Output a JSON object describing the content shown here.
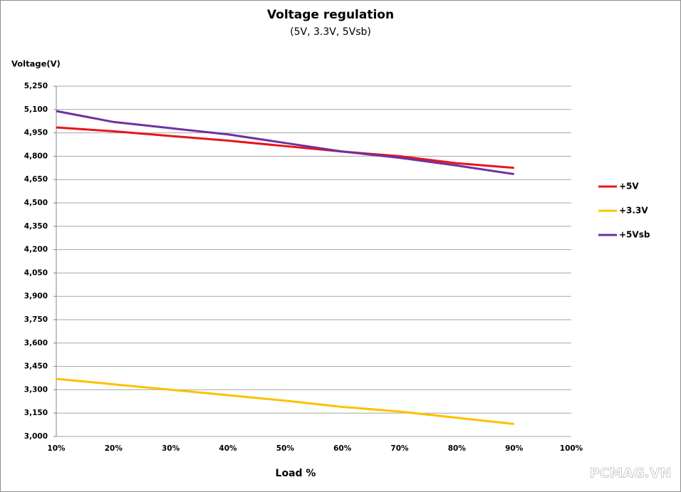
{
  "chart_data": {
    "type": "line",
    "title": "Voltage regulation",
    "subtitle": "(5V, 3.3V, 5Vsb)",
    "y_label": "Voltage(V)",
    "x_label": "Load %",
    "watermark": "PCMAG.VN",
    "categories": [
      "10%",
      "20%",
      "30%",
      "40%",
      "50%",
      "60%",
      "70%",
      "80%",
      "90%",
      "100%"
    ],
    "series": [
      {
        "name": "+5V",
        "color": "#e8141c",
        "values": [
          4985,
          4960,
          4930,
          4900,
          4865,
          4830,
          4800,
          4755,
          4725,
          null
        ]
      },
      {
        "name": "+3.3V",
        "color": "#ffc000",
        "values": [
          3370,
          3335,
          3300,
          3265,
          3230,
          3190,
          3160,
          3120,
          3080,
          null
        ]
      },
      {
        "name": "+5Vsb",
        "color": "#7030a0",
        "values": [
          5090,
          5020,
          4980,
          4940,
          4885,
          4830,
          4790,
          4740,
          4685,
          null
        ]
      }
    ],
    "ylim": [
      3000,
      5250
    ],
    "yticks": [
      {
        "value": 3000,
        "label": "3,000"
      },
      {
        "value": 3150,
        "label": "3,150"
      },
      {
        "value": 3300,
        "label": "3,300"
      },
      {
        "value": 3450,
        "label": "3,450"
      },
      {
        "value": 3600,
        "label": "3,600"
      },
      {
        "value": 3750,
        "label": "3,750"
      },
      {
        "value": 3900,
        "label": "3,900"
      },
      {
        "value": 4050,
        "label": "4,050"
      },
      {
        "value": 4200,
        "label": "4,200"
      },
      {
        "value": 4350,
        "label": "4,350"
      },
      {
        "value": 4500,
        "label": "4,500"
      },
      {
        "value": 4650,
        "label": "4,650"
      },
      {
        "value": 4800,
        "label": "4,800"
      },
      {
        "value": 4950,
        "label": "4,950"
      },
      {
        "value": 5100,
        "label": "5,100"
      },
      {
        "value": 5250,
        "label": "5,250"
      }
    ],
    "grid": true,
    "legend": "right"
  }
}
